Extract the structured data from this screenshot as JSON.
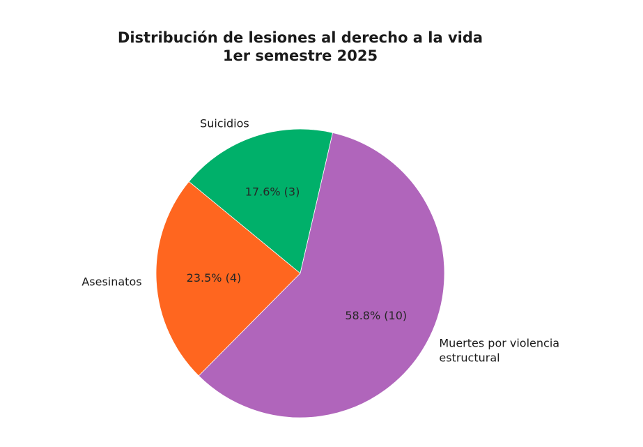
{
  "chart_data": {
    "type": "pie",
    "title": "Distribución de lesiones al derecho a la vida",
    "subtitle": "1er semestre 2025",
    "slices": [
      {
        "label": "Muertes por violencia estructural",
        "label_lines": [
          "Muertes por violencia",
          "estructural"
        ],
        "value": 10,
        "pct_label": "58.8% (10)",
        "color": "#b065bb"
      },
      {
        "label": "Asesinatos",
        "label_lines": [
          "Asesinatos"
        ],
        "value": 4,
        "pct_label": "23.5% (4)",
        "color": "#ff661f"
      },
      {
        "label": "Suicidios",
        "label_lines": [
          "Suicidios"
        ],
        "value": 3,
        "pct_label": "17.6% (3)",
        "color": "#00b06a"
      }
    ]
  }
}
